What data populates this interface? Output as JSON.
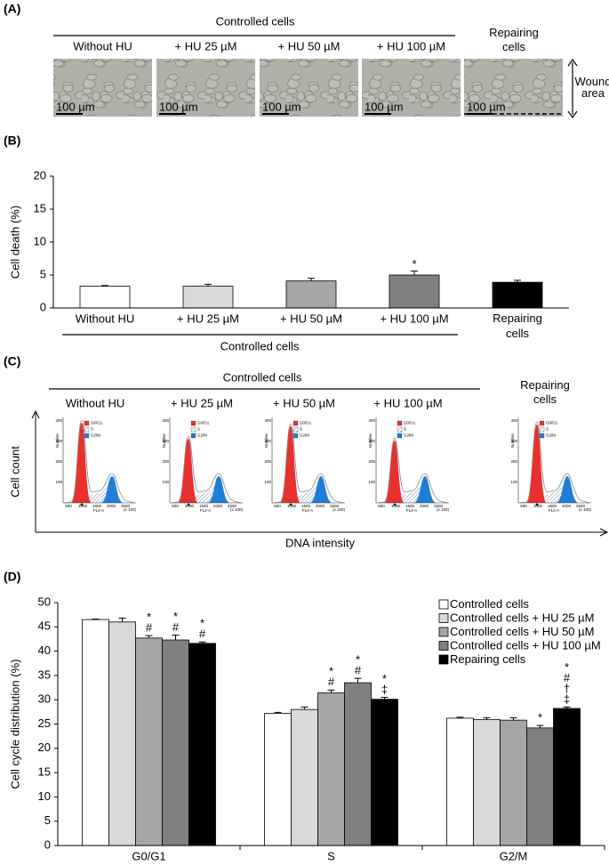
{
  "figure": {
    "panel_labels": [
      "(A)",
      "(B)",
      "(C)",
      "(D)"
    ],
    "controlled_cells": "Controlled cells",
    "repairing_cells": "Repairing cells",
    "scale_bar": "100 µm",
    "wound_area": "Wound area",
    "cell_count": "Cell count",
    "dna_intensity": "DNA intensity",
    "flow_plot": {
      "legend": [
        "G0/G1",
        "S",
        "G2/M"
      ],
      "y_label": "Number",
      "x_label": "FL2-A",
      "x_ticks": [
        "500",
        "1000",
        "1500",
        "2000",
        "2500"
      ],
      "x_unit": "(x 100)",
      "y_ticks": [
        "100",
        "200",
        "300",
        "400"
      ]
    }
  },
  "chart_data": [
    {
      "type": "bar",
      "y_label": "Cell death (%)",
      "categories": [
        "Without HU",
        "+ HU 25 µM",
        "+ HU 50 µM",
        "+ HU 100 µM",
        "Repairing cells"
      ],
      "values": [
        3.3,
        3.3,
        4.1,
        5.0,
        3.9
      ],
      "errors": [
        0.1,
        0.3,
        0.4,
        0.6,
        0.3
      ],
      "colors": [
        "#ffffff",
        "#d9d9d9",
        "#a6a6a6",
        "#808080",
        "#000000"
      ],
      "annotations": [
        {
          "index": 3,
          "text": "*"
        }
      ],
      "ylim": [
        0,
        20
      ],
      "yticks": [
        0,
        5,
        10,
        15,
        20
      ]
    },
    {
      "type": "grouped_bar",
      "y_label": "Cell cycle distribution (%)",
      "categories": [
        "G0/G1",
        "S",
        "G2/M"
      ],
      "series": [
        {
          "name": "Controlled cells",
          "color": "#ffffff",
          "values": [
            46.5,
            27.2,
            26.2
          ],
          "errors": [
            0.1,
            0.2,
            0.2
          ]
        },
        {
          "name": "Controlled cells + HU 25 µM",
          "color": "#d9d9d9",
          "values": [
            46.0,
            28.0,
            25.9
          ],
          "errors": [
            0.8,
            0.5,
            0.4
          ]
        },
        {
          "name": "Controlled cells + HU 50 µM",
          "color": "#a6a6a6",
          "values": [
            42.7,
            31.4,
            25.8
          ],
          "errors": [
            0.5,
            0.6,
            0.5
          ],
          "annotations": [
            {
              "category": 0,
              "symbols": [
                "*",
                "#"
              ]
            },
            {
              "category": 1,
              "symbols": [
                "*",
                "#"
              ]
            }
          ]
        },
        {
          "name": "Controlled cells + HU 100 µM",
          "color": "#808080",
          "values": [
            42.3,
            33.5,
            24.2
          ],
          "errors": [
            1.0,
            0.9,
            0.5
          ],
          "annotations": [
            {
              "category": 0,
              "symbols": [
                "*",
                "#"
              ]
            },
            {
              "category": 1,
              "symbols": [
                "*",
                "#"
              ]
            },
            {
              "category": 2,
              "symbols": [
                "*"
              ]
            }
          ]
        },
        {
          "name": "Repairing cells",
          "color": "#000000",
          "values": [
            41.6,
            30.1,
            28.2
          ],
          "errors": [
            0.3,
            0.4,
            0.3
          ],
          "annotations": [
            {
              "category": 0,
              "symbols": [
                "*",
                "#"
              ]
            },
            {
              "category": 1,
              "symbols": [
                "*",
                "‡"
              ]
            },
            {
              "category": 2,
              "symbols": [
                "*",
                "#",
                "†",
                "‡"
              ]
            }
          ]
        }
      ],
      "ylim": [
        0,
        50
      ],
      "yticks": [
        0,
        5,
        10,
        15,
        20,
        25,
        30,
        35,
        40,
        45,
        50
      ],
      "legend": "upper right"
    }
  ]
}
